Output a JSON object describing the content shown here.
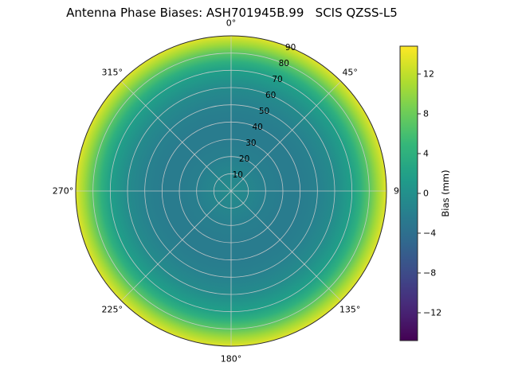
{
  "title": "Antenna Phase Biases: ASH701945B.99   SCIS QZSS-L5",
  "chart_data": {
    "type": "heatmap",
    "projection": "polar",
    "title": "Antenna Phase Biases: ASH701945B.99   SCIS QZSS-L5",
    "theta_direction": "clockwise",
    "theta_zero": "top",
    "theta_ticks": [
      {
        "deg": 0,
        "label": "0°"
      },
      {
        "deg": 45,
        "label": "45°"
      },
      {
        "deg": 90,
        "label": "90"
      },
      {
        "deg": 135,
        "label": "135°"
      },
      {
        "deg": 180,
        "label": "180°"
      },
      {
        "deg": 225,
        "label": "225°"
      },
      {
        "deg": 270,
        "label": "270°"
      },
      {
        "deg": 315,
        "label": "315°"
      }
    ],
    "r_ticks": [
      10,
      20,
      30,
      40,
      50,
      60,
      70,
      80,
      90
    ],
    "r_max": 90,
    "r_label_azimuth_deg": 22.5,
    "radial_profile": {
      "zenith_deg": [
        0,
        10,
        20,
        30,
        40,
        50,
        60,
        70,
        75,
        80,
        85,
        90
      ],
      "bias_mm": [
        -0.5,
        -1.2,
        -2.0,
        -2.4,
        -2.4,
        -1.8,
        -0.6,
        1.8,
        4.0,
        7.0,
        10.5,
        13.5
      ]
    },
    "colorbar": {
      "label": "Bias (mm)",
      "vmin": -14.8,
      "vmax": 14.8,
      "ticks": [
        12,
        8,
        4,
        0,
        -4,
        -8,
        -12
      ],
      "tick_labels": [
        "12",
        "8",
        "4",
        "0",
        "−4",
        "−8",
        "−12"
      ]
    },
    "colormap": "viridis",
    "colormap_anchors": [
      "#440154",
      "#482878",
      "#3e4989",
      "#31688e",
      "#26828e",
      "#1f9e89",
      "#35b779",
      "#6ece58",
      "#b5de2b",
      "#fde725"
    ],
    "grid_color": "#cccccc",
    "outline_color": "#2a2a2a"
  }
}
